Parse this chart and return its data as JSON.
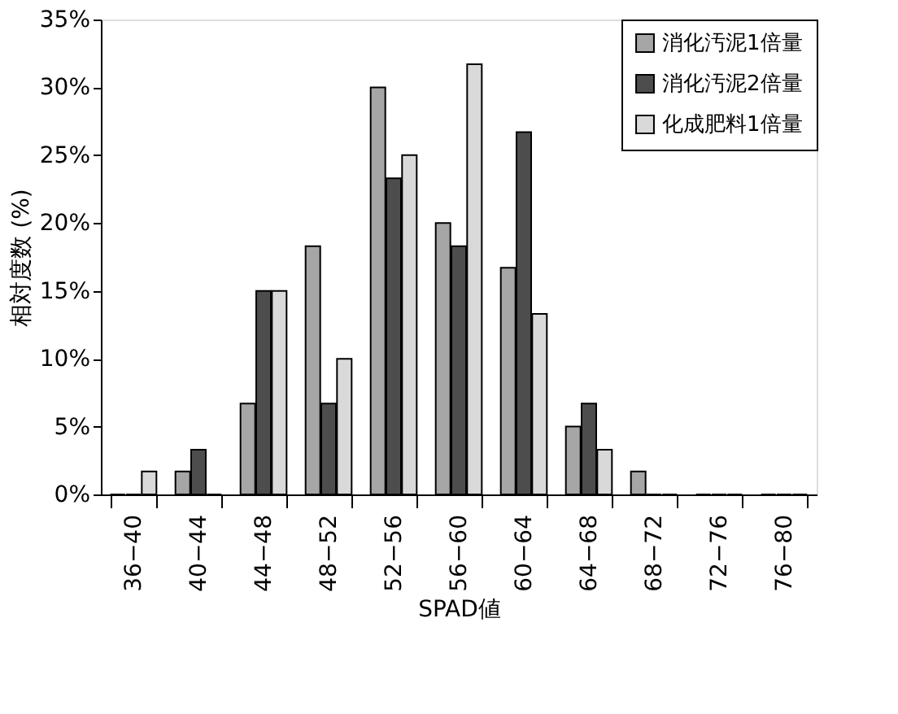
{
  "chart_data": {
    "type": "bar",
    "xlabel": "SPAD値",
    "ylabel": "相対度数 (%)",
    "categories": [
      "36−40",
      "40−44",
      "44−48",
      "48−52",
      "52−56",
      "56−60",
      "60−64",
      "64−68",
      "68−72",
      "72−76",
      "76−80"
    ],
    "series": [
      {
        "name": "消化汚泥1倍量",
        "color": "#a6a6a6",
        "values": [
          0,
          1.7,
          6.7,
          18.3,
          30,
          20,
          16.7,
          5,
          1.7,
          0,
          0
        ]
      },
      {
        "name": "消化汚泥2倍量",
        "color": "#4d4d4d",
        "values": [
          0,
          3.3,
          15,
          6.7,
          23.3,
          18.3,
          26.7,
          6.7,
          0,
          0,
          0
        ]
      },
      {
        "name": "化成肥料1倍量",
        "color": "#d9d9d9",
        "values": [
          1.7,
          0,
          15,
          10,
          25,
          31.7,
          13.3,
          3.3,
          0,
          0,
          0
        ]
      }
    ],
    "ylim": [
      0,
      35
    ],
    "yticks": [
      {
        "value": 0,
        "label": "0%"
      },
      {
        "value": 5,
        "label": "5%"
      },
      {
        "value": 10,
        "label": "10%"
      },
      {
        "value": 15,
        "label": "15%"
      },
      {
        "value": 20,
        "label": "20%"
      },
      {
        "value": 25,
        "label": "25%"
      },
      {
        "value": 30,
        "label": "30%"
      },
      {
        "value": 35,
        "label": "35%"
      }
    ],
    "grid": false,
    "legend": "top right"
  }
}
